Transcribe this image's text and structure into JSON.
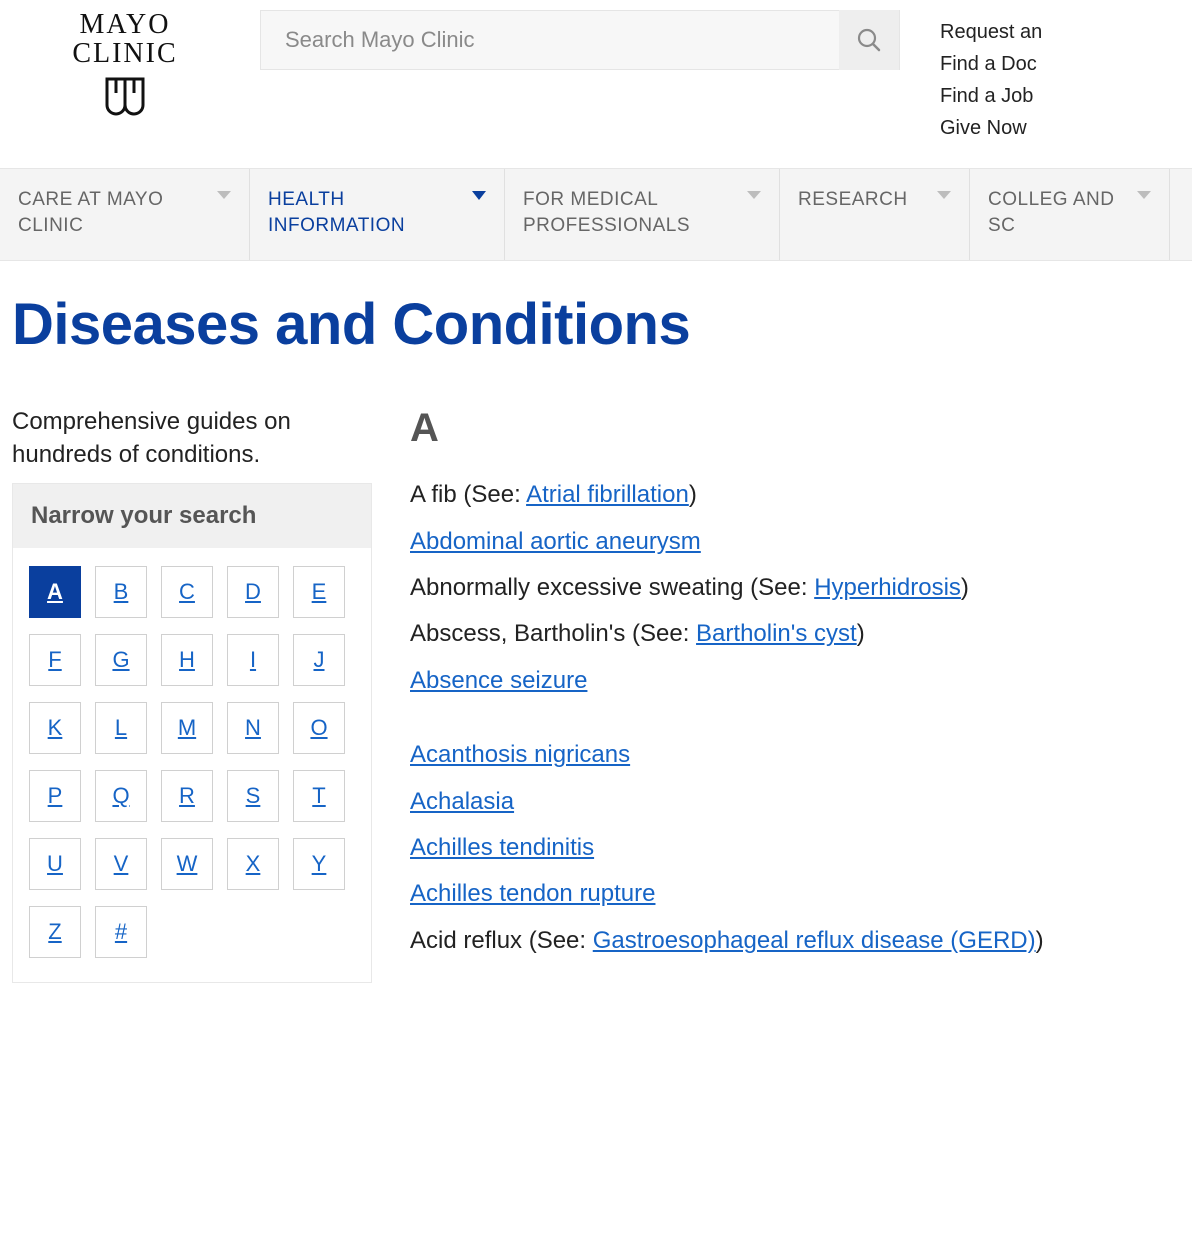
{
  "brand": {
    "line1": "MAYO",
    "line2": "CLINIC"
  },
  "search": {
    "placeholder": "Search Mayo Clinic"
  },
  "top_links": [
    {
      "label": "Request an"
    },
    {
      "label": "Find a Doc"
    },
    {
      "label": "Find a Job"
    },
    {
      "label": "Give Now"
    }
  ],
  "nav": [
    {
      "label": "CARE AT MAYO CLINIC",
      "active": false
    },
    {
      "label": "HEALTH INFORMATION",
      "active": true
    },
    {
      "label": "FOR MEDICAL PROFESSIONALS",
      "active": false
    },
    {
      "label": "RESEARCH",
      "active": false
    },
    {
      "label": "COLLEG AND SC",
      "active": false
    }
  ],
  "page_title": "Diseases and Conditions",
  "sidebar": {
    "intro": "Comprehensive guides on hundreds of conditions.",
    "narrow_title": "Narrow your search",
    "letters": [
      "A",
      "B",
      "C",
      "D",
      "E",
      "F",
      "G",
      "H",
      "I",
      "J",
      "K",
      "L",
      "M",
      "N",
      "O",
      "P",
      "Q",
      "R",
      "S",
      "T",
      "U",
      "V",
      "W",
      "X",
      "Y",
      "Z",
      "#"
    ],
    "active_letter": "A"
  },
  "content": {
    "section_letter": "A",
    "items": [
      {
        "type": "see",
        "text": "A fib",
        "see_label": "Atrial fibrillation"
      },
      {
        "type": "link",
        "label": "Abdominal aortic aneurysm"
      },
      {
        "type": "see",
        "text": "Abnormally excessive sweating",
        "see_label": "Hyperhidrosis"
      },
      {
        "type": "see",
        "text": "Abscess, Bartholin's",
        "see_label": "Bartholin's cyst"
      },
      {
        "type": "link",
        "label": "Absence seizure"
      },
      {
        "type": "gap"
      },
      {
        "type": "link",
        "label": "Acanthosis nigricans"
      },
      {
        "type": "link",
        "label": "Achalasia"
      },
      {
        "type": "link",
        "label": "Achilles tendinitis"
      },
      {
        "type": "link",
        "label": "Achilles tendon rupture"
      },
      {
        "type": "see",
        "text": "Acid reflux",
        "see_label": "Gastroesophageal reflux disease (GERD)"
      }
    ]
  },
  "colors": {
    "brand_blue": "#0a3f9e",
    "link_blue": "#1664c6",
    "nav_bg": "#f4f4f4",
    "border": "#e0e0e0"
  }
}
